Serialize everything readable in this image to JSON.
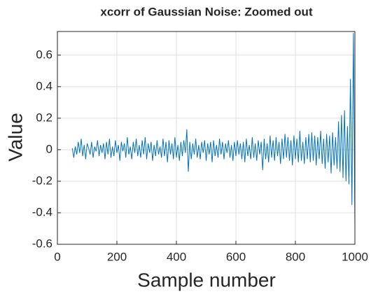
{
  "chart_data": {
    "type": "line",
    "title": "xcorr of Gaussian Noise: Zoomed out",
    "x_label": "Sample number",
    "y_label": "Value",
    "xlim": [
      0,
      1000
    ],
    "xticks": [
      0,
      200,
      400,
      600,
      800,
      1000
    ],
    "ylim": [
      -0.6,
      0.75
    ],
    "yticks": [
      -0.6,
      -0.4,
      -0.2,
      0,
      0.2,
      0.4,
      0.6
    ],
    "grid": true,
    "x": [
      50,
      55,
      60,
      65,
      70,
      75,
      80,
      85,
      90,
      95,
      100,
      105,
      110,
      115,
      120,
      125,
      130,
      135,
      140,
      145,
      150,
      155,
      160,
      165,
      170,
      175,
      180,
      185,
      190,
      195,
      200,
      205,
      210,
      215,
      220,
      225,
      230,
      235,
      240,
      245,
      250,
      255,
      260,
      265,
      270,
      275,
      280,
      285,
      290,
      295,
      300,
      305,
      310,
      315,
      320,
      325,
      330,
      335,
      340,
      345,
      350,
      355,
      360,
      365,
      370,
      375,
      380,
      385,
      390,
      395,
      400,
      405,
      410,
      415,
      420,
      425,
      430,
      435,
      440,
      445,
      450,
      455,
      460,
      465,
      470,
      475,
      480,
      485,
      490,
      495,
      500,
      505,
      510,
      515,
      520,
      525,
      530,
      535,
      540,
      545,
      550,
      555,
      560,
      565,
      570,
      575,
      580,
      585,
      590,
      595,
      600,
      605,
      610,
      615,
      620,
      625,
      630,
      635,
      640,
      645,
      650,
      655,
      660,
      665,
      670,
      675,
      680,
      685,
      690,
      695,
      700,
      705,
      710,
      715,
      720,
      725,
      730,
      735,
      740,
      745,
      750,
      755,
      760,
      765,
      770,
      775,
      780,
      785,
      790,
      795,
      800,
      805,
      810,
      815,
      820,
      825,
      830,
      835,
      840,
      845,
      850,
      855,
      860,
      865,
      870,
      875,
      880,
      885,
      890,
      895,
      900,
      905,
      910,
      915,
      920,
      925,
      930,
      935,
      940,
      945,
      950,
      955,
      960,
      965,
      970,
      975,
      980,
      985,
      990,
      995,
      1000
    ],
    "series": [
      {
        "name": "xcorr",
        "color": "#0072bd",
        "values": [
          0.01,
          -0.05,
          0.02,
          -0.03,
          0.05,
          -0.02,
          0.07,
          -0.04,
          0.03,
          -0.06,
          0.04,
          0.01,
          -0.03,
          0.05,
          -0.05,
          0.02,
          -0.01,
          0.06,
          -0.04,
          0.03,
          -0.02,
          0.04,
          -0.06,
          0.05,
          -0.03,
          0.07,
          -0.05,
          0.02,
          -0.04,
          0.06,
          -0.02,
          0.03,
          -0.07,
          0.05,
          -0.01,
          0.04,
          -0.05,
          0.08,
          -0.03,
          0.02,
          -0.06,
          0.05,
          -0.02,
          0.07,
          -0.04,
          0.03,
          -0.05,
          0.06,
          -0.03,
          0.08,
          -0.06,
          0.04,
          -0.02,
          0.05,
          -0.07,
          0.03,
          -0.04,
          0.06,
          -0.03,
          0.02,
          -0.05,
          0.07,
          -0.04,
          0.05,
          -0.08,
          0.06,
          -0.03,
          0.04,
          -0.06,
          0.08,
          -0.05,
          0.03,
          -0.07,
          0.05,
          -0.04,
          0.06,
          -0.02,
          0.13,
          -0.14,
          0.05,
          -0.06,
          0.04,
          -0.03,
          0.07,
          -0.05,
          0.03,
          -0.06,
          0.05,
          -0.02,
          0.06,
          -0.07,
          0.04,
          -0.03,
          0.05,
          -0.08,
          0.06,
          -0.04,
          0.03,
          -0.05,
          0.07,
          -0.03,
          0.05,
          -0.06,
          0.04,
          -0.02,
          0.06,
          -0.05,
          0.03,
          -0.07,
          0.05,
          -0.04,
          0.06,
          -0.03,
          0.04,
          -0.06,
          0.05,
          -0.08,
          0.07,
          -0.04,
          0.03,
          -0.06,
          0.08,
          -0.05,
          0.04,
          -0.07,
          0.06,
          -0.03,
          0.05,
          -0.13,
          0.07,
          -0.06,
          0.04,
          -0.08,
          0.09,
          -0.05,
          0.06,
          -0.07,
          0.08,
          -0.04,
          0.05,
          -0.09,
          0.07,
          -0.06,
          0.1,
          -0.05,
          0.08,
          -0.07,
          0.06,
          -0.1,
          0.09,
          -0.06,
          0.07,
          -0.08,
          0.12,
          -0.07,
          0.05,
          -0.09,
          0.08,
          -0.06,
          0.1,
          -0.08,
          0.11,
          -0.07,
          0.09,
          -0.1,
          0.08,
          -0.06,
          0.12,
          -0.09,
          0.07,
          -0.12,
          0.1,
          -0.08,
          0.09,
          -0.15,
          0.11,
          -0.1,
          0.08,
          -0.12,
          0.18,
          -0.14,
          0.22,
          -0.18,
          0.25,
          -0.2,
          0.15,
          -0.22,
          0.45,
          -0.35,
          0.74,
          -0.49
        ]
      }
    ]
  }
}
